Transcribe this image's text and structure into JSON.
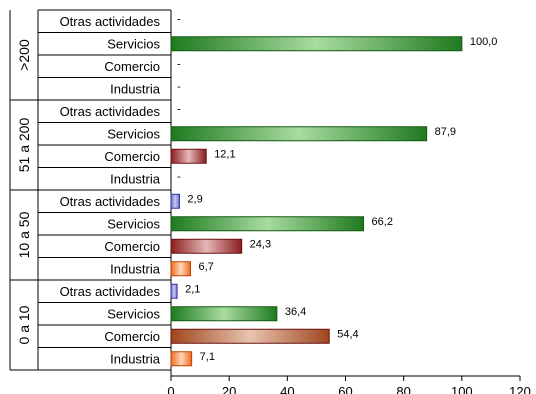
{
  "chart_data": {
    "type": "bar",
    "orientation": "horizontal",
    "xlim": [
      0,
      120
    ],
    "x_ticks": [
      "0",
      "20",
      "40",
      "60",
      "80",
      "100",
      "120"
    ],
    "x_tick_values": [
      0,
      20,
      40,
      60,
      80,
      100,
      120
    ],
    "grid": false,
    "legend": "none",
    "categories": [
      "Otras actividades",
      "Servicios",
      "Comercio",
      "Industria"
    ],
    "category_colors": {
      "Otras actividades": "#8c8cd8",
      "Servicios": "#2e8b2e",
      "Comercio": "#9b2d2d",
      "Industria": "#f07830"
    },
    "groups": [
      {
        "label": ">200",
        "bars": [
          {
            "category": "Otras actividades",
            "value": null,
            "label": "-"
          },
          {
            "category": "Servicios",
            "value": 100.0,
            "label": "100,0"
          },
          {
            "category": "Comercio",
            "value": null,
            "label": "-"
          },
          {
            "category": "Industria",
            "value": null,
            "label": "-"
          }
        ]
      },
      {
        "label": "51 a 200",
        "bars": [
          {
            "category": "Otras actividades",
            "value": null,
            "label": "-"
          },
          {
            "category": "Servicios",
            "value": 87.9,
            "label": "87,9"
          },
          {
            "category": "Comercio",
            "value": 12.1,
            "label": "12,1"
          },
          {
            "category": "Industria",
            "value": null,
            "label": "-"
          }
        ]
      },
      {
        "label": "10 a 50",
        "bars": [
          {
            "category": "Otras actividades",
            "value": 2.9,
            "label": "2,9"
          },
          {
            "category": "Servicios",
            "value": 66.2,
            "label": "66,2"
          },
          {
            "category": "Comercio",
            "value": 24.3,
            "label": "24,3"
          },
          {
            "category": "Industria",
            "value": 6.7,
            "label": "6,7"
          }
        ]
      },
      {
        "label": "0 a 10",
        "bars": [
          {
            "category": "Otras actividades",
            "value": 2.1,
            "label": "2,1"
          },
          {
            "category": "Servicios",
            "value": 36.4,
            "label": "36,4"
          },
          {
            "category": "Comercio",
            "value": 54.4,
            "label": "54,4"
          },
          {
            "category": "Industria",
            "value": 7.1,
            "label": "7,1"
          }
        ]
      }
    ]
  }
}
